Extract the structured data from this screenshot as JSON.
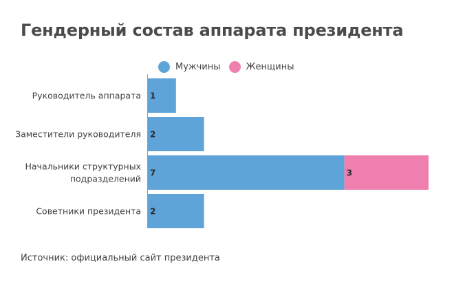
{
  "colors": {
    "men": "#5fa4d8",
    "women": "#ef7fae",
    "axis": "#9a9a9a"
  },
  "chart_data": {
    "type": "bar",
    "orientation": "horizontal",
    "stacked": true,
    "title": "Гендерный состав аппарата президента",
    "categories": [
      [
        "Руководитель аппарата"
      ],
      [
        "Заместители руководителя"
      ],
      [
        "Начальники структурных",
        "подразделений"
      ],
      [
        "Советники президента"
      ]
    ],
    "series": [
      {
        "name": "Мужчины",
        "color": "#5fa4d8",
        "values": [
          1,
          2,
          7,
          2
        ]
      },
      {
        "name": "Женщины",
        "color": "#ef7fae",
        "values": [
          0,
          0,
          3,
          0
        ]
      }
    ],
    "xlim": [
      0,
      10
    ],
    "grid": false,
    "legend_position": "top"
  },
  "source": "Источник: официальный сайт президента"
}
